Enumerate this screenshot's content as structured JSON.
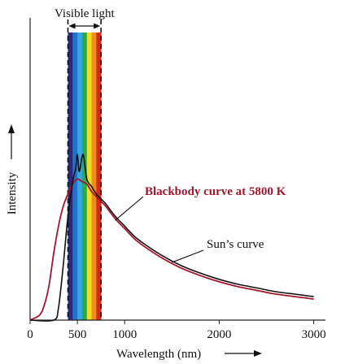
{
  "chart_data": {
    "type": "line",
    "title": "",
    "xlabel": "Wavelength (nm)",
    "ylabel": "Intensity",
    "xlim": [
      0,
      3200
    ],
    "x_ticks": [
      0,
      500,
      1000,
      2000,
      3000
    ],
    "x_tick_labels": [
      "0",
      "500",
      "1000",
      "2000",
      "3000"
    ],
    "y_ticks": [],
    "grid": false,
    "legend": "none",
    "visible_band": {
      "label": "Visible light",
      "range_nm": [
        400,
        750
      ],
      "colors": [
        "#2a2a78",
        "#1f74c9",
        "#34a7e0",
        "#2fa84a",
        "#f1dd1e",
        "#f08c1e",
        "#d42a1c"
      ]
    },
    "series": [
      {
        "name": "Blackbody curve at 5800 K",
        "color": "#a3152a",
        "x": [
          0,
          100,
          150,
          200,
          250,
          300,
          350,
          400,
          450,
          500,
          550,
          600,
          650,
          700,
          750,
          800,
          900,
          1000,
          1100,
          1200,
          1400,
          1600,
          1800,
          2000,
          2200,
          2400,
          2600,
          2800,
          3000
        ],
        "y": [
          0.0,
          0.02,
          0.06,
          0.14,
          0.27,
          0.38,
          0.46,
          0.51,
          0.55,
          0.57,
          0.56,
          0.55,
          0.52,
          0.5,
          0.48,
          0.46,
          0.41,
          0.37,
          0.33,
          0.3,
          0.25,
          0.21,
          0.18,
          0.155,
          0.135,
          0.12,
          0.105,
          0.095,
          0.085
        ]
      },
      {
        "name": "Sun's curve",
        "color": "#111111",
        "x": [
          0,
          250,
          300,
          350,
          400,
          450,
          480,
          500,
          520,
          560,
          600,
          650,
          700,
          750,
          800,
          900,
          1000,
          1100,
          1200,
          1400,
          1600,
          1800,
          2000,
          2200,
          2400,
          2600,
          2800,
          3000
        ],
        "y": [
          0.0,
          0.0,
          0.05,
          0.22,
          0.42,
          0.56,
          0.61,
          0.67,
          0.6,
          0.67,
          0.57,
          0.54,
          0.51,
          0.49,
          0.47,
          0.42,
          0.38,
          0.34,
          0.31,
          0.26,
          0.22,
          0.19,
          0.165,
          0.145,
          0.13,
          0.115,
          0.105,
          0.095
        ]
      }
    ],
    "annotations": [
      {
        "text": "Blackbody curve at 5800 K",
        "target_series": 0,
        "point_x": 750
      },
      {
        "text": "Sun’s curve",
        "target_series": 1,
        "point_x": 1500
      }
    ]
  }
}
